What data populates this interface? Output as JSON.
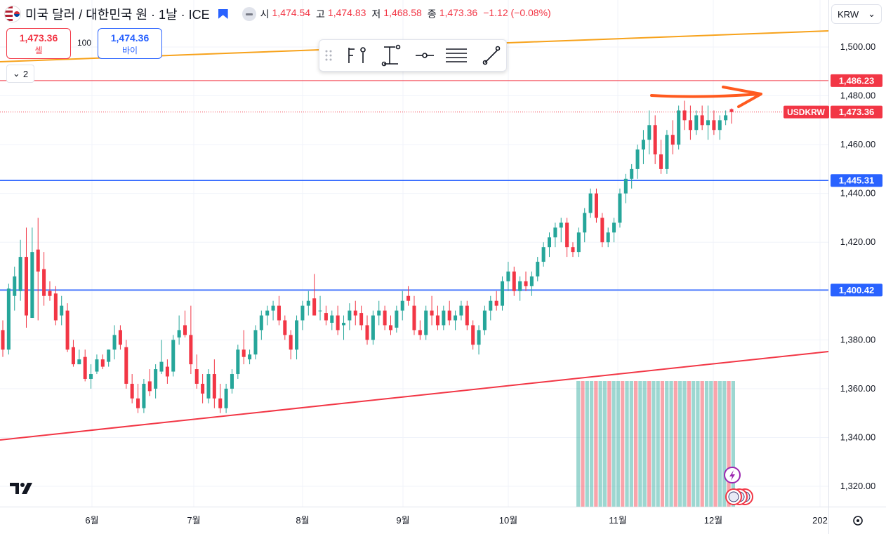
{
  "header": {
    "title": "미국 달러 / 대한민국 원 · 1날 · ICE",
    "open_label": "시",
    "open_value": "1,474.54",
    "high_label": "고",
    "high_value": "1,474.83",
    "low_label": "저",
    "low_value": "1,468.58",
    "close_label": "종",
    "close_value": "1,473.36",
    "change": "−1.12 (−0.08%)"
  },
  "trade": {
    "sell_price": "1,473.36",
    "sell_label": "셀",
    "quantity": "100",
    "buy_price": "1,474.36",
    "buy_label": "바이"
  },
  "collapse_label": "2",
  "currency_select": "KRW",
  "colors": {
    "up": "#26a69a",
    "down": "#f23645",
    "hline": "#2962ff",
    "upper_trend": "#f7a21b",
    "lower_trend": "#f23645",
    "arrow": "#ff5a1f"
  },
  "chart_data": {
    "type": "candlestick",
    "symbol": "USDKRW",
    "last_price": "1,473.36",
    "ylim": [
      1310,
      1510
    ],
    "y_ticks": [
      1320,
      1340,
      1360,
      1380,
      1400,
      1420,
      1440,
      1460,
      1480,
      1500
    ],
    "y_tick_labels": [
      "1,320.00",
      "1,340.00",
      "1,360.00",
      "1,380.00",
      "1,400.00",
      "1,420.00",
      "1,440.00",
      "1,460.00",
      "1,480.00",
      "1,500.00"
    ],
    "x_tick_labels": [
      "6월",
      "7월",
      "8월",
      "9월",
      "10월",
      "11월",
      "12월",
      "202"
    ],
    "horizontal_levels": [
      {
        "value": 1486.23,
        "label": "1,486.23",
        "color": "#f23645"
      },
      {
        "value": 1445.31,
        "label": "1,445.31",
        "color": "#2962ff"
      },
      {
        "value": 1400.42,
        "label": "1,400.42",
        "color": "#2962ff"
      }
    ],
    "candles": [
      [
        1384,
        1388,
        1373,
        1376
      ],
      [
        1376,
        1403,
        1374,
        1401
      ],
      [
        1398,
        1410,
        1392,
        1406
      ],
      [
        1400,
        1421,
        1396,
        1414
      ],
      [
        1414,
        1426,
        1385,
        1390
      ],
      [
        1389,
        1426,
        1389,
        1416
      ],
      [
        1417,
        1430,
        1388,
        1408
      ],
      [
        1409,
        1416,
        1394,
        1398
      ],
      [
        1400,
        1404,
        1396,
        1398
      ],
      [
        1399,
        1402,
        1386,
        1388
      ],
      [
        1390,
        1398,
        1386,
        1394
      ],
      [
        1392,
        1395,
        1375,
        1376
      ],
      [
        1377,
        1380,
        1369,
        1370
      ],
      [
        1370,
        1376,
        1370,
        1372
      ],
      [
        1373,
        1376,
        1363,
        1364
      ],
      [
        1364,
        1370,
        1360,
        1366
      ],
      [
        1367,
        1374,
        1366,
        1372
      ],
      [
        1372,
        1374,
        1368,
        1369
      ],
      [
        1371,
        1376,
        1369,
        1376
      ],
      [
        1376,
        1386,
        1372,
        1382
      ],
      [
        1384,
        1386,
        1376,
        1378
      ],
      [
        1377,
        1380,
        1360,
        1362
      ],
      [
        1362,
        1366,
        1354,
        1356
      ],
      [
        1356,
        1362,
        1350,
        1352
      ],
      [
        1352,
        1364,
        1350,
        1362
      ],
      [
        1363,
        1368,
        1357,
        1359
      ],
      [
        1360,
        1370,
        1356,
        1368
      ],
      [
        1367,
        1380,
        1366,
        1371
      ],
      [
        1369,
        1372,
        1362,
        1365
      ],
      [
        1367,
        1382,
        1365,
        1380
      ],
      [
        1381,
        1390,
        1378,
        1384
      ],
      [
        1386,
        1392,
        1381,
        1382
      ],
      [
        1382,
        1394,
        1366,
        1370
      ],
      [
        1368,
        1374,
        1360,
        1362
      ],
      [
        1362,
        1366,
        1354,
        1358
      ],
      [
        1356,
        1368,
        1354,
        1366
      ],
      [
        1366,
        1372,
        1352,
        1356
      ],
      [
        1356,
        1362,
        1350,
        1352
      ],
      [
        1352,
        1362,
        1350,
        1360
      ],
      [
        1360,
        1368,
        1358,
        1366
      ],
      [
        1366,
        1378,
        1364,
        1376
      ],
      [
        1376,
        1384,
        1370,
        1373
      ],
      [
        1372,
        1376,
        1370,
        1374
      ],
      [
        1374,
        1386,
        1372,
        1384
      ],
      [
        1384,
        1392,
        1380,
        1390
      ],
      [
        1390,
        1394,
        1386,
        1392
      ],
      [
        1392,
        1396,
        1388,
        1394
      ],
      [
        1394,
        1398,
        1386,
        1388
      ],
      [
        1388,
        1390,
        1380,
        1382
      ],
      [
        1382,
        1384,
        1372,
        1376
      ],
      [
        1376,
        1390,
        1372,
        1388
      ],
      [
        1388,
        1396,
        1384,
        1394
      ],
      [
        1394,
        1400,
        1390,
        1396
      ],
      [
        1397,
        1407,
        1390,
        1390
      ],
      [
        1392,
        1398,
        1388,
        1392
      ],
      [
        1391,
        1394,
        1386,
        1388
      ],
      [
        1387,
        1392,
        1384,
        1390
      ],
      [
        1390,
        1394,
        1382,
        1384
      ],
      [
        1386,
        1390,
        1380,
        1387
      ],
      [
        1388,
        1395,
        1384,
        1392
      ],
      [
        1392,
        1396,
        1386,
        1390
      ],
      [
        1391,
        1394,
        1384,
        1386
      ],
      [
        1386,
        1390,
        1378,
        1380
      ],
      [
        1380,
        1392,
        1378,
        1390
      ],
      [
        1390,
        1396,
        1386,
        1392
      ],
      [
        1392,
        1394,
        1384,
        1386
      ],
      [
        1386,
        1390,
        1382,
        1384
      ],
      [
        1385,
        1394,
        1383,
        1392
      ],
      [
        1392,
        1400,
        1388,
        1396
      ],
      [
        1398,
        1402,
        1394,
        1396
      ],
      [
        1394,
        1398,
        1382,
        1384
      ],
      [
        1384,
        1388,
        1380,
        1382
      ],
      [
        1382,
        1394,
        1380,
        1392
      ],
      [
        1392,
        1398,
        1386,
        1390
      ],
      [
        1390,
        1394,
        1384,
        1386
      ],
      [
        1386,
        1394,
        1384,
        1392
      ],
      [
        1392,
        1396,
        1386,
        1388
      ],
      [
        1388,
        1392,
        1384,
        1390
      ],
      [
        1390,
        1396,
        1388,
        1394
      ],
      [
        1394,
        1396,
        1384,
        1386
      ],
      [
        1386,
        1388,
        1376,
        1378
      ],
      [
        1378,
        1386,
        1374,
        1384
      ],
      [
        1384,
        1394,
        1382,
        1392
      ],
      [
        1392,
        1398,
        1388,
        1396
      ],
      [
        1396,
        1400,
        1392,
        1394
      ],
      [
        1394,
        1406,
        1392,
        1404
      ],
      [
        1404,
        1412,
        1400,
        1408
      ],
      [
        1408,
        1410,
        1398,
        1400
      ],
      [
        1400,
        1406,
        1396,
        1404
      ],
      [
        1404,
        1408,
        1400,
        1402
      ],
      [
        1402,
        1408,
        1398,
        1406
      ],
      [
        1406,
        1414,
        1404,
        1412
      ],
      [
        1412,
        1420,
        1410,
        1418
      ],
      [
        1418,
        1424,
        1414,
        1422
      ],
      [
        1422,
        1428,
        1418,
        1426
      ],
      [
        1426,
        1430,
        1420,
        1428
      ],
      [
        1428,
        1430,
        1414,
        1418
      ],
      [
        1418,
        1420,
        1414,
        1416
      ],
      [
        1416,
        1426,
        1414,
        1424
      ],
      [
        1424,
        1434,
        1420,
        1432
      ],
      [
        1432,
        1442,
        1430,
        1440
      ],
      [
        1440,
        1442,
        1428,
        1430
      ],
      [
        1430,
        1432,
        1418,
        1420
      ],
      [
        1420,
        1426,
        1418,
        1424
      ],
      [
        1424,
        1430,
        1420,
        1428
      ],
      [
        1428,
        1442,
        1426,
        1440
      ],
      [
        1440,
        1448,
        1436,
        1446
      ],
      [
        1446,
        1452,
        1442,
        1450
      ],
      [
        1450,
        1460,
        1446,
        1458
      ],
      [
        1458,
        1466,
        1452,
        1462
      ],
      [
        1462,
        1474,
        1456,
        1468
      ],
      [
        1468,
        1472,
        1452,
        1456
      ],
      [
        1456,
        1462,
        1448,
        1450
      ],
      [
        1450,
        1466,
        1448,
        1464
      ],
      [
        1464,
        1470,
        1456,
        1460
      ],
      [
        1460,
        1476,
        1458,
        1474
      ],
      [
        1474,
        1478,
        1466,
        1470
      ],
      [
        1470,
        1476,
        1462,
        1466
      ],
      [
        1466,
        1474,
        1464,
        1472
      ],
      [
        1472,
        1476,
        1466,
        1468
      ],
      [
        1468,
        1476,
        1462,
        1470
      ],
      [
        1470,
        1474,
        1464,
        1466
      ],
      [
        1466,
        1472,
        1462,
        1470
      ],
      [
        1470,
        1474,
        1468,
        1472
      ],
      [
        1474.54,
        1474.83,
        1468.58,
        1473.36
      ]
    ],
    "volume_bars": 36
  }
}
